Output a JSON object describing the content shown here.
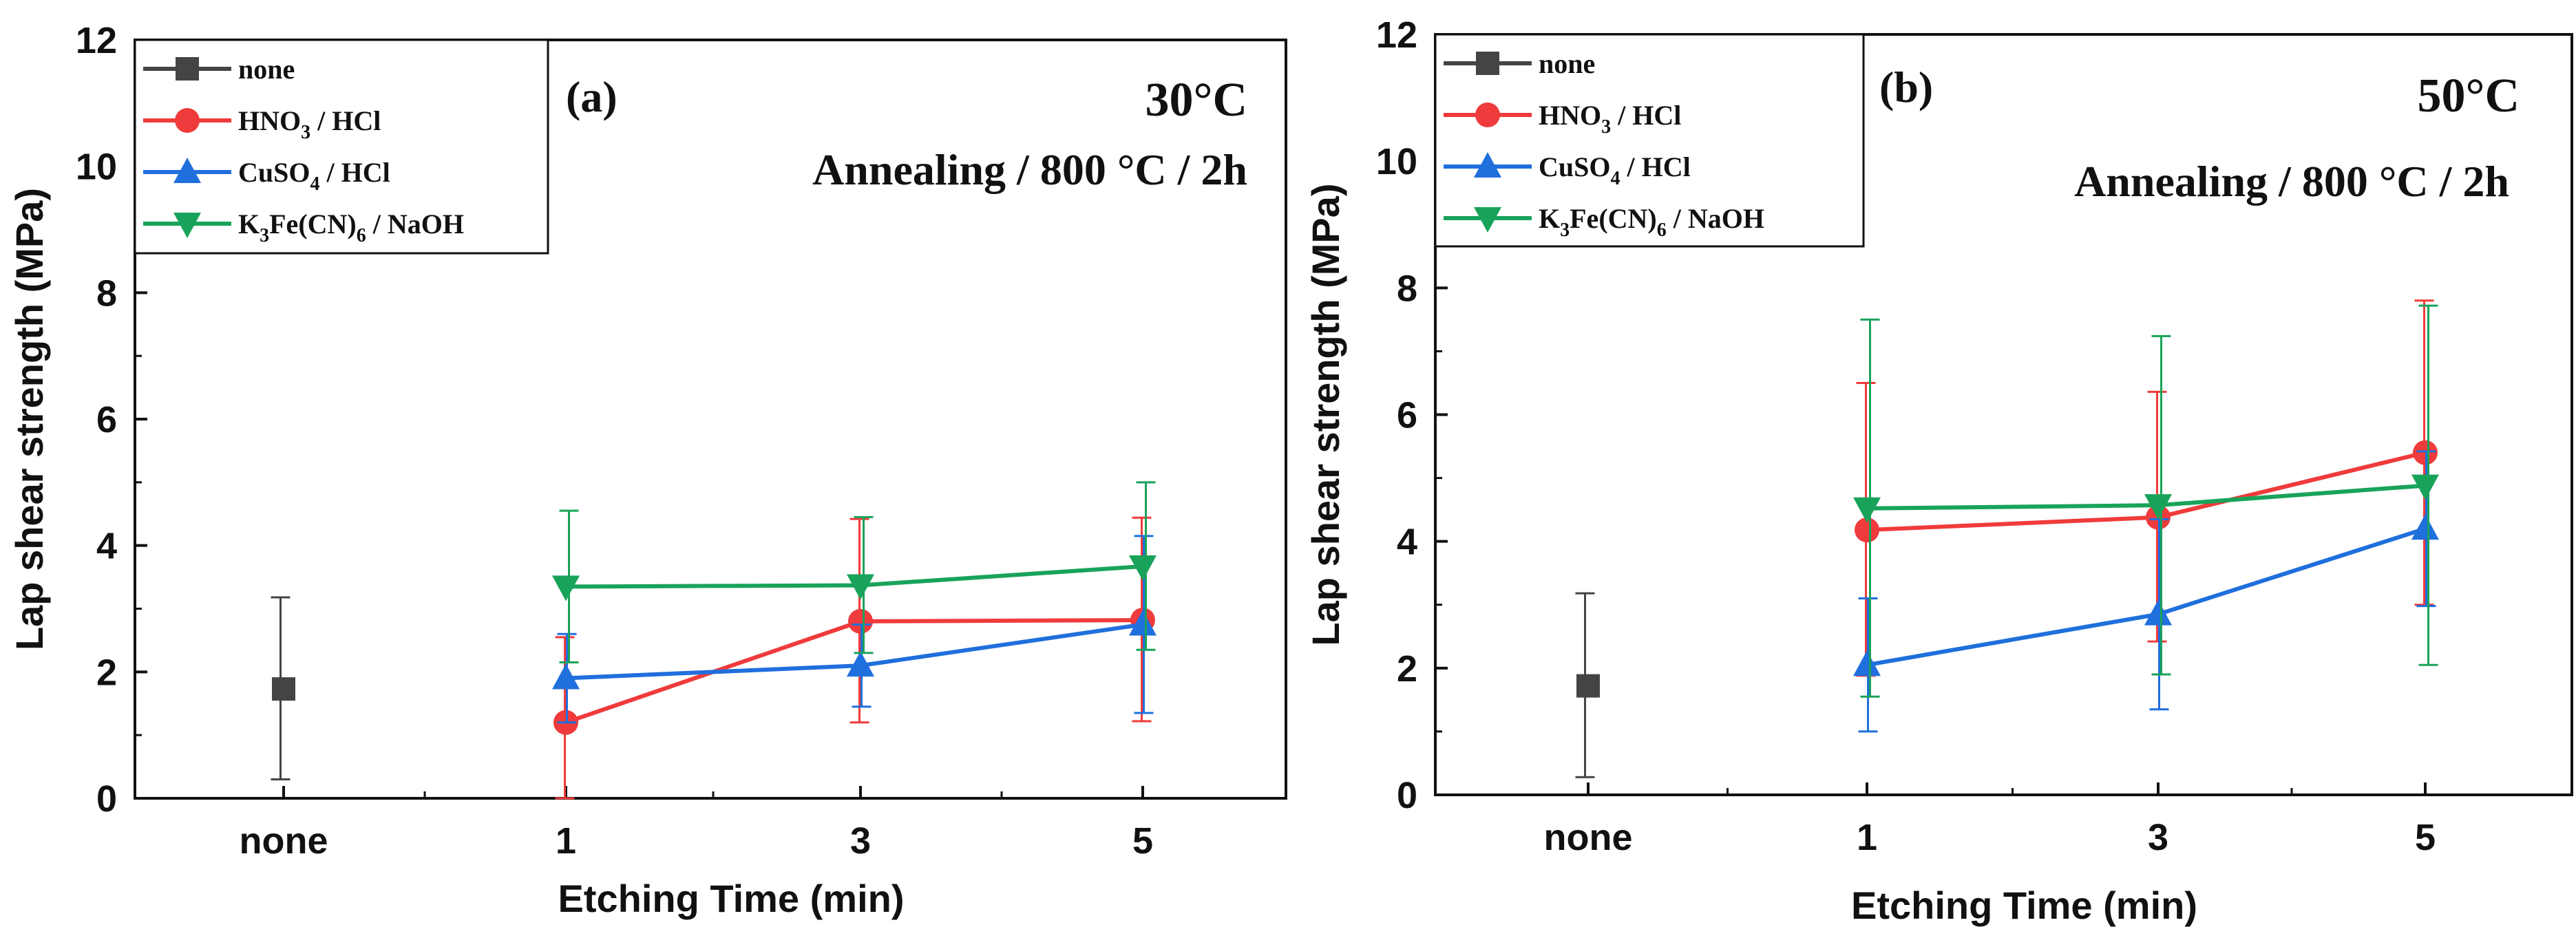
{
  "chart_data": [
    {
      "type": "line",
      "panel_label": "(a)",
      "temperature_label": "30°C",
      "condition_label": "Annealing / 800 °C / 2h",
      "xlabel": "Etching Time (min)",
      "ylabel": "Lap shear strength (MPa)",
      "categories": [
        "none",
        "1",
        "3",
        "5"
      ],
      "ylim": [
        0,
        12
      ],
      "y_ticks": [
        "0",
        "2",
        "4",
        "6",
        "8",
        "10",
        "12"
      ],
      "legend_position": "top-left",
      "error_bars": true,
      "series": [
        {
          "name": "none",
          "legend_base": "none",
          "legend_sub1": "",
          "legend_mid": "",
          "legend_sub2": "",
          "legend_tail": "",
          "color": "#444444",
          "marker": "square",
          "points": [
            {
              "x": "none",
              "y": 1.73,
              "err_low": 0.3,
              "err_high": 3.18
            }
          ]
        },
        {
          "name": "HNO3 / HCl",
          "legend_base": "HNO",
          "legend_sub1": "3",
          "legend_mid": " / HCl",
          "legend_sub2": "",
          "legend_tail": "",
          "color": "#ef3b3b",
          "marker": "circle",
          "points": [
            {
              "x": "1",
              "y": 1.2,
              "err_low": 0.0,
              "err_high": 2.55
            },
            {
              "x": "3",
              "y": 2.8,
              "err_low": 1.2,
              "err_high": 4.42
            },
            {
              "x": "5",
              "y": 2.82,
              "err_low": 1.22,
              "err_high": 4.44
            }
          ]
        },
        {
          "name": "CuSO4 / HCl",
          "legend_base": "CuSO",
          "legend_sub1": "4",
          "legend_mid": " / HCl",
          "legend_sub2": "",
          "legend_tail": "",
          "color": "#1f6fdc",
          "marker": "triangle-up",
          "points": [
            {
              "x": "1",
              "y": 1.9,
              "err_low": 1.2,
              "err_high": 2.6
            },
            {
              "x": "3",
              "y": 2.1,
              "err_low": 1.45,
              "err_high": 2.75
            },
            {
              "x": "5",
              "y": 2.75,
              "err_low": 1.35,
              "err_high": 4.15
            }
          ]
        },
        {
          "name": "K3Fe(CN)6 / NaOH",
          "legend_base": "K",
          "legend_sub1": "3",
          "legend_mid": "Fe(CN)",
          "legend_sub2": "6",
          "legend_tail": " / NaOH",
          "color": "#19a35a",
          "marker": "triangle-down",
          "points": [
            {
              "x": "1",
              "y": 3.35,
              "err_low": 2.15,
              "err_high": 4.55
            },
            {
              "x": "3",
              "y": 3.37,
              "err_low": 2.3,
              "err_high": 4.45
            },
            {
              "x": "5",
              "y": 3.67,
              "err_low": 2.35,
              "err_high": 5.0
            }
          ]
        }
      ]
    },
    {
      "type": "line",
      "panel_label": "(b)",
      "temperature_label": "50°C",
      "condition_label": "Annealing / 800 °C / 2h",
      "xlabel": "Etching Time (min)",
      "ylabel": "Lap shear strength (MPa)",
      "categories": [
        "none",
        "1",
        "3",
        "5"
      ],
      "ylim": [
        0,
        12
      ],
      "y_ticks": [
        "0",
        "2",
        "4",
        "6",
        "8",
        "10",
        "12"
      ],
      "legend_position": "top-left",
      "error_bars": true,
      "series": [
        {
          "name": "none",
          "legend_base": "none",
          "legend_sub1": "",
          "legend_mid": "",
          "legend_sub2": "",
          "legend_tail": "",
          "color": "#444444",
          "marker": "square",
          "points": [
            {
              "x": "none",
              "y": 1.72,
              "err_low": 0.28,
              "err_high": 3.18
            }
          ]
        },
        {
          "name": "HNO3 / HCl",
          "legend_base": "HNO",
          "legend_sub1": "3",
          "legend_mid": " / HCl",
          "legend_sub2": "",
          "legend_tail": "",
          "color": "#ef3b3b",
          "marker": "circle",
          "points": [
            {
              "x": "1",
              "y": 4.18,
              "err_low": 1.88,
              "err_high": 6.5
            },
            {
              "x": "3",
              "y": 4.38,
              "err_low": 2.42,
              "err_high": 6.36
            },
            {
              "x": "5",
              "y": 5.4,
              "err_low": 3.0,
              "err_high": 7.8
            }
          ]
        },
        {
          "name": "CuSO4 / HCl",
          "legend_base": "CuSO",
          "legend_sub1": "4",
          "legend_mid": " / HCl",
          "legend_sub2": "",
          "legend_tail": "",
          "color": "#1f6fdc",
          "marker": "triangle-up",
          "points": [
            {
              "x": "1",
              "y": 2.05,
              "err_low": 1.0,
              "err_high": 3.1
            },
            {
              "x": "3",
              "y": 2.85,
              "err_low": 1.35,
              "err_high": 4.35
            },
            {
              "x": "5",
              "y": 4.2,
              "err_low": 2.98,
              "err_high": 5.42
            }
          ]
        },
        {
          "name": "K3Fe(CN)6 / NaOH",
          "legend_base": "K",
          "legend_sub1": "3",
          "legend_mid": "Fe(CN)",
          "legend_sub2": "6",
          "legend_tail": " / NaOH",
          "color": "#19a35a",
          "marker": "triangle-down",
          "points": [
            {
              "x": "1",
              "y": 4.52,
              "err_low": 1.55,
              "err_high": 7.5
            },
            {
              "x": "3",
              "y": 4.57,
              "err_low": 1.9,
              "err_high": 7.24
            },
            {
              "x": "5",
              "y": 4.88,
              "err_low": 2.05,
              "err_high": 7.72
            }
          ]
        }
      ]
    }
  ]
}
